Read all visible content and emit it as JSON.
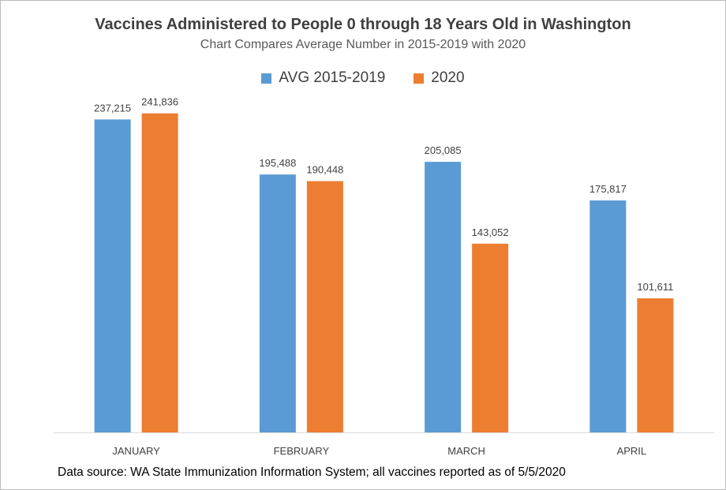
{
  "chart_data": {
    "type": "bar",
    "title": "Vaccines Administered to People 0 through 18 Years Old in Washington",
    "subtitle": "Chart Compares Average Number in 2015-2019 with 2020",
    "categories": [
      "JANUARY",
      "FEBRUARY",
      "MARCH",
      "APRIL"
    ],
    "series": [
      {
        "name": "AVG 2015-2019",
        "color": "#5B9BD5",
        "values": [
          237215,
          195488,
          205085,
          175817
        ],
        "labels": [
          "237,215",
          "195,488",
          "205,085",
          "175,817"
        ]
      },
      {
        "name": "2020",
        "color": "#ED7D31",
        "values": [
          241836,
          190448,
          143052,
          101611
        ],
        "labels": [
          "241,836",
          "190,448",
          "143,052",
          "101,611"
        ]
      }
    ],
    "xlabel": "",
    "ylabel": "",
    "ylim": [
      0,
      250000
    ],
    "grid": false,
    "legend_position": "top"
  },
  "source_note": "Data source: WA State Immunization Information System; all vaccines reported as of 5/5/2020"
}
